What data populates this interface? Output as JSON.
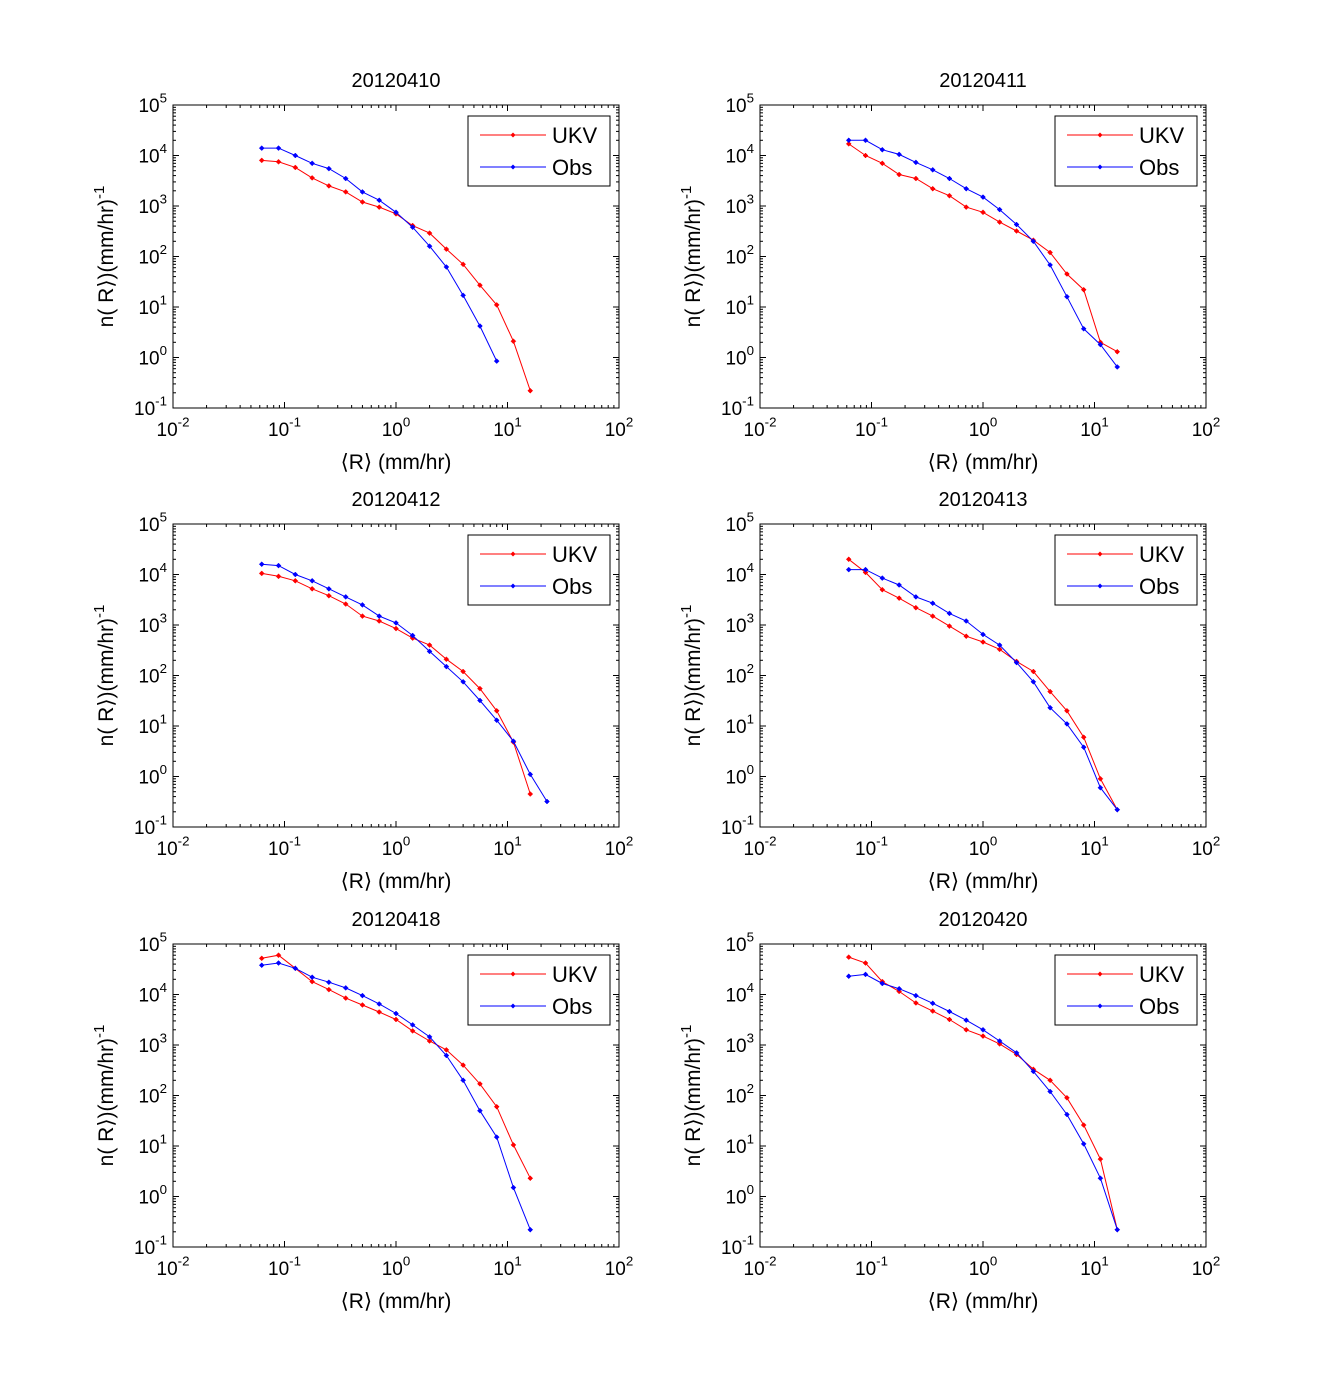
{
  "chart_data": [
    {
      "type": "line",
      "title": "20120410",
      "xlabel": "⟨R⟩ (mm/hr)",
      "ylabel": "n( R⟩)(mm/hr)",
      "ylabel_exp": "-1",
      "xscale": "log",
      "yscale": "log",
      "xlim": [
        0.01,
        100
      ],
      "ylim": [
        0.1,
        100000
      ],
      "x_ticks": [
        0.01,
        0.1,
        1,
        10,
        100
      ],
      "x_tick_exps": [
        "-2",
        "-1",
        "0",
        "1",
        "2"
      ],
      "y_ticks": [
        0.1,
        1,
        10,
        100,
        1000,
        10000,
        100000
      ],
      "y_tick_exps": [
        "-1",
        "0",
        "1",
        "2",
        "3",
        "4",
        "5"
      ],
      "grid": false,
      "legend": "top-right",
      "series": [
        {
          "name": "UKV",
          "color": "#ff0000",
          "x": [
            0.0625,
            0.0884,
            0.125,
            0.177,
            0.25,
            0.354,
            0.5,
            0.707,
            1.0,
            1.41,
            2.0,
            2.83,
            4.0,
            5.66,
            8.0,
            11.3,
            16.0
          ],
          "y": [
            8000,
            7500,
            5800,
            3600,
            2500,
            1900,
            1200,
            950,
            700,
            410,
            290,
            140,
            70,
            27,
            11,
            2.1,
            0.22
          ]
        },
        {
          "name": "Obs",
          "color": "#0000ff",
          "x": [
            0.0625,
            0.0884,
            0.125,
            0.177,
            0.25,
            0.354,
            0.5,
            0.707,
            1.0,
            1.41,
            2.0,
            2.83,
            4.0,
            5.66,
            8.0
          ],
          "y": [
            14000,
            14000,
            10000,
            7000,
            5500,
            3500,
            1900,
            1300,
            750,
            380,
            160,
            62,
            17,
            4.2,
            0.85
          ]
        }
      ]
    },
    {
      "type": "line",
      "title": "20120411",
      "xlabel": "⟨R⟩ (mm/hr)",
      "ylabel": "n( R⟩)(mm/hr)",
      "ylabel_exp": "-1",
      "xscale": "log",
      "yscale": "log",
      "xlim": [
        0.01,
        100
      ],
      "ylim": [
        0.1,
        100000
      ],
      "x_ticks": [
        0.01,
        0.1,
        1,
        10,
        100
      ],
      "x_tick_exps": [
        "-2",
        "-1",
        "0",
        "1",
        "2"
      ],
      "y_ticks": [
        0.1,
        1,
        10,
        100,
        1000,
        10000,
        100000
      ],
      "y_tick_exps": [
        "-1",
        "0",
        "1",
        "2",
        "3",
        "4",
        "5"
      ],
      "grid": false,
      "legend": "top-right",
      "series": [
        {
          "name": "UKV",
          "color": "#ff0000",
          "x": [
            0.0625,
            0.0884,
            0.125,
            0.177,
            0.25,
            0.354,
            0.5,
            0.707,
            1.0,
            1.41,
            2.0,
            2.83,
            4.0,
            5.66,
            8.0,
            11.3,
            16.0
          ],
          "y": [
            17000,
            10000,
            7000,
            4200,
            3500,
            2200,
            1600,
            950,
            750,
            480,
            320,
            210,
            120,
            45,
            22,
            2.0,
            1.3
          ]
        },
        {
          "name": "Obs",
          "color": "#0000ff",
          "x": [
            0.0625,
            0.0884,
            0.125,
            0.177,
            0.25,
            0.354,
            0.5,
            0.707,
            1.0,
            1.41,
            2.0,
            2.83,
            4.0,
            5.66,
            8.0,
            11.3,
            16.0
          ],
          "y": [
            20000,
            20000,
            13000,
            10500,
            7300,
            5200,
            3500,
            2200,
            1500,
            850,
            430,
            200,
            68,
            16,
            3.7,
            1.8,
            0.65
          ]
        }
      ]
    },
    {
      "type": "line",
      "title": "20120412",
      "xlabel": "⟨R⟩ (mm/hr)",
      "ylabel": "n( R⟩)(mm/hr)",
      "ylabel_exp": "-1",
      "xscale": "log",
      "yscale": "log",
      "xlim": [
        0.01,
        100
      ],
      "ylim": [
        0.1,
        100000
      ],
      "x_ticks": [
        0.01,
        0.1,
        1,
        10,
        100
      ],
      "x_tick_exps": [
        "-2",
        "-1",
        "0",
        "1",
        "2"
      ],
      "y_ticks": [
        0.1,
        1,
        10,
        100,
        1000,
        10000,
        100000
      ],
      "y_tick_exps": [
        "-1",
        "0",
        "1",
        "2",
        "3",
        "4",
        "5"
      ],
      "grid": false,
      "legend": "top-right",
      "series": [
        {
          "name": "UKV",
          "color": "#ff0000",
          "x": [
            0.0625,
            0.0884,
            0.125,
            0.177,
            0.25,
            0.354,
            0.5,
            0.707,
            1.0,
            1.41,
            2.0,
            2.83,
            4.0,
            5.66,
            8.0,
            11.3,
            16.0
          ],
          "y": [
            10500,
            9200,
            7500,
            5200,
            3800,
            2600,
            1500,
            1200,
            850,
            550,
            400,
            210,
            120,
            55,
            20,
            4.8,
            0.45
          ]
        },
        {
          "name": "Obs",
          "color": "#0000ff",
          "x": [
            0.0625,
            0.0884,
            0.125,
            0.177,
            0.25,
            0.354,
            0.5,
            0.707,
            1.0,
            1.41,
            2.0,
            2.83,
            4.0,
            5.66,
            8.0,
            11.3,
            16.0,
            22.6
          ],
          "y": [
            16000,
            15000,
            10000,
            7500,
            5200,
            3600,
            2500,
            1500,
            1100,
            620,
            300,
            150,
            75,
            32,
            13,
            5.0,
            1.1,
            0.32
          ]
        }
      ]
    },
    {
      "type": "line",
      "title": "20120413",
      "xlabel": "⟨R⟩ (mm/hr)",
      "ylabel": "n( R⟩)(mm/hr)",
      "ylabel_exp": "-1",
      "xscale": "log",
      "yscale": "log",
      "xlim": [
        0.01,
        100
      ],
      "ylim": [
        0.1,
        100000
      ],
      "x_ticks": [
        0.01,
        0.1,
        1,
        10,
        100
      ],
      "x_tick_exps": [
        "-2",
        "-1",
        "0",
        "1",
        "2"
      ],
      "y_ticks": [
        0.1,
        1,
        10,
        100,
        1000,
        10000,
        100000
      ],
      "y_tick_exps": [
        "-1",
        "0",
        "1",
        "2",
        "3",
        "4",
        "5"
      ],
      "grid": false,
      "legend": "top-right",
      "series": [
        {
          "name": "UKV",
          "color": "#ff0000",
          "x": [
            0.0625,
            0.0884,
            0.125,
            0.177,
            0.25,
            0.354,
            0.5,
            0.707,
            1.0,
            1.41,
            2.0,
            2.83,
            4.0,
            5.66,
            8.0,
            11.3,
            16.0
          ],
          "y": [
            20000,
            11000,
            5000,
            3400,
            2200,
            1500,
            950,
            600,
            460,
            330,
            190,
            120,
            48,
            20,
            6.0,
            0.9,
            0.22
          ]
        },
        {
          "name": "Obs",
          "color": "#0000ff",
          "x": [
            0.0625,
            0.0884,
            0.125,
            0.177,
            0.25,
            0.354,
            0.5,
            0.707,
            1.0,
            1.41,
            2.0,
            2.83,
            4.0,
            5.66,
            8.0,
            11.3,
            16.0
          ],
          "y": [
            12500,
            12500,
            8500,
            6200,
            3600,
            2700,
            1700,
            1200,
            650,
            400,
            180,
            75,
            23,
            11,
            3.8,
            0.6,
            0.22
          ]
        }
      ]
    },
    {
      "type": "line",
      "title": "20120418",
      "xlabel": "⟨R⟩ (mm/hr)",
      "ylabel": "n( R⟩)(mm/hr)",
      "ylabel_exp": "-1",
      "xscale": "log",
      "yscale": "log",
      "xlim": [
        0.01,
        100
      ],
      "ylim": [
        0.1,
        100000
      ],
      "x_ticks": [
        0.01,
        0.1,
        1,
        10,
        100
      ],
      "x_tick_exps": [
        "-2",
        "-1",
        "0",
        "1",
        "2"
      ],
      "y_ticks": [
        0.1,
        1,
        10,
        100,
        1000,
        10000,
        100000
      ],
      "y_tick_exps": [
        "-1",
        "0",
        "1",
        "2",
        "3",
        "4",
        "5"
      ],
      "grid": false,
      "legend": "top-right",
      "series": [
        {
          "name": "UKV",
          "color": "#ff0000",
          "x": [
            0.0625,
            0.0884,
            0.125,
            0.177,
            0.25,
            0.354,
            0.5,
            0.707,
            1.0,
            1.41,
            2.0,
            2.83,
            4.0,
            5.66,
            8.0,
            11.3,
            16.0
          ],
          "y": [
            52000,
            60000,
            33000,
            18000,
            12500,
            8500,
            6200,
            4500,
            3200,
            1900,
            1200,
            800,
            400,
            170,
            60,
            10.5,
            2.3
          ]
        },
        {
          "name": "Obs",
          "color": "#0000ff",
          "x": [
            0.0625,
            0.0884,
            0.125,
            0.177,
            0.25,
            0.354,
            0.5,
            0.707,
            1.0,
            1.41,
            2.0,
            2.83,
            4.0,
            5.66,
            8.0,
            11.3,
            16.0
          ],
          "y": [
            38000,
            42000,
            33000,
            22000,
            17500,
            13500,
            9500,
            6500,
            4200,
            2500,
            1450,
            620,
            200,
            50,
            15,
            1.5,
            0.22
          ]
        }
      ]
    },
    {
      "type": "line",
      "title": "20120420",
      "xlabel": "⟨R⟩ (mm/hr)",
      "ylabel": "n( R⟩)(mm/hr)",
      "ylabel_exp": "-1",
      "xscale": "log",
      "yscale": "log",
      "xlim": [
        0.01,
        100
      ],
      "ylim": [
        0.1,
        100000
      ],
      "x_ticks": [
        0.01,
        0.1,
        1,
        10,
        100
      ],
      "x_tick_exps": [
        "-2",
        "-1",
        "0",
        "1",
        "2"
      ],
      "y_ticks": [
        0.1,
        1,
        10,
        100,
        1000,
        10000,
        100000
      ],
      "y_tick_exps": [
        "-1",
        "0",
        "1",
        "2",
        "3",
        "4",
        "5"
      ],
      "grid": false,
      "legend": "top-right",
      "series": [
        {
          "name": "UKV",
          "color": "#ff0000",
          "x": [
            0.0625,
            0.0884,
            0.125,
            0.177,
            0.25,
            0.354,
            0.5,
            0.707,
            1.0,
            1.41,
            2.0,
            2.83,
            4.0,
            5.66,
            8.0,
            11.3,
            16.0
          ],
          "y": [
            55000,
            42000,
            18000,
            11500,
            6800,
            4700,
            3200,
            2000,
            1500,
            1050,
            650,
            330,
            200,
            90,
            26,
            5.5,
            0.22
          ]
        },
        {
          "name": "Obs",
          "color": "#0000ff",
          "x": [
            0.0625,
            0.0884,
            0.125,
            0.177,
            0.25,
            0.354,
            0.5,
            0.707,
            1.0,
            1.41,
            2.0,
            2.83,
            4.0,
            5.66,
            8.0,
            11.3,
            16.0
          ],
          "y": [
            23000,
            25000,
            16500,
            13000,
            9500,
            6700,
            4600,
            3100,
            2000,
            1200,
            700,
            300,
            120,
            42,
            11,
            2.3,
            0.22
          ]
        }
      ]
    }
  ]
}
